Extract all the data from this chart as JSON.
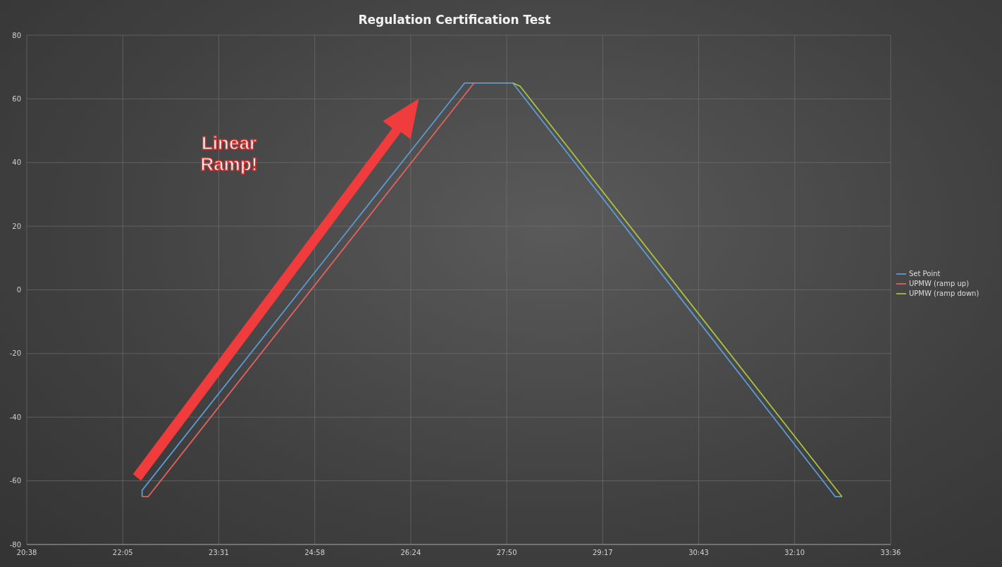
{
  "chart_data": {
    "type": "line",
    "title": "Regulation Certification Test",
    "xlim": [
      20.64,
      33.6
    ],
    "xticks": [
      {
        "value": 20.64,
        "label": "20:38"
      },
      {
        "value": 22.08,
        "label": "22:05"
      },
      {
        "value": 23.52,
        "label": "23:31"
      },
      {
        "value": 24.96,
        "label": "24:58"
      },
      {
        "value": 26.4,
        "label": "26:24"
      },
      {
        "value": 27.84,
        "label": "27:50"
      },
      {
        "value": 29.28,
        "label": "29:17"
      },
      {
        "value": 30.72,
        "label": "30:43"
      },
      {
        "value": 32.16,
        "label": "32:10"
      },
      {
        "value": 33.6,
        "label": "33:36"
      }
    ],
    "ylim": [
      -80,
      80
    ],
    "yticks": [
      -80,
      -60,
      -40,
      -20,
      0,
      20,
      40,
      60,
      80
    ],
    "grid": true,
    "legend": "right",
    "marker": "none",
    "line_style": "solid",
    "annotations": [
      "Linear Ramp!"
    ],
    "series": [
      {
        "name": "Set Point",
        "color": "#5b9bd5",
        "x": [
          22.37,
          22.37,
          27.21,
          27.93,
          32.77,
          32.87
        ],
        "values": [
          -65,
          -63,
          65,
          65,
          -65,
          -65
        ]
      },
      {
        "name": "UPMW (ramp up)",
        "color": "#e06262",
        "x": [
          22.37,
          22.46,
          27.35
        ],
        "values": [
          -65,
          -65,
          65
        ]
      },
      {
        "name": "UPMW (ramp down)",
        "color": "#a9c23f",
        "x": [
          27.93,
          28.04,
          32.87
        ],
        "values": [
          65,
          64,
          -65
        ]
      }
    ]
  }
}
